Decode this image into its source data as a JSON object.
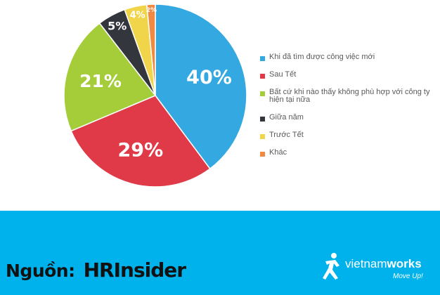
{
  "chart_data": {
    "type": "pie",
    "slices": [
      {
        "label": "Khi đã tìm được công việc mới",
        "value": 40,
        "display": "40%",
        "color": "#34a8e0"
      },
      {
        "label": "Sau Tết",
        "value": 29,
        "display": "29%",
        "color": "#e03a48"
      },
      {
        "label": "Bất cứ khi nào thấy không phù hợp với công ty hiện tại nữa",
        "value": 21,
        "display": "21%",
        "color": "#a4cd39"
      },
      {
        "label": "Giữa năm",
        "value": 5,
        "display": "5%",
        "color": "#33373d"
      },
      {
        "label": "Trước Tết",
        "value": 4,
        "display": "4%",
        "color": "#f0d54a"
      },
      {
        "label": "Khác",
        "value": 1.5,
        "display": "2%",
        "color": "#f08a42"
      }
    ],
    "legend_position": "right"
  },
  "legend": [
    {
      "text": "Khi đã tìm được công việc mới",
      "color": "#34a8e0"
    },
    {
      "text": "Sau Tết",
      "color": "#e03a48"
    },
    {
      "text": "Bất cứ khi nào thấy không phù hợp với công ty hiện tại nữa",
      "color": "#a4cd39"
    },
    {
      "text": "Giữa năm",
      "color": "#33373d"
    },
    {
      "text": "Trước Tết",
      "color": "#f0d54a"
    },
    {
      "text": "Khác",
      "color": "#f08a42"
    }
  ],
  "footer": {
    "background": "#00b2ec",
    "source_label": "Nguồn:",
    "source_logo_hr": "HR",
    "source_logo_insider": "Insider",
    "vw_name_light": "vietnam",
    "vw_name_bold": "works",
    "vw_tagline": "Move Up!"
  }
}
